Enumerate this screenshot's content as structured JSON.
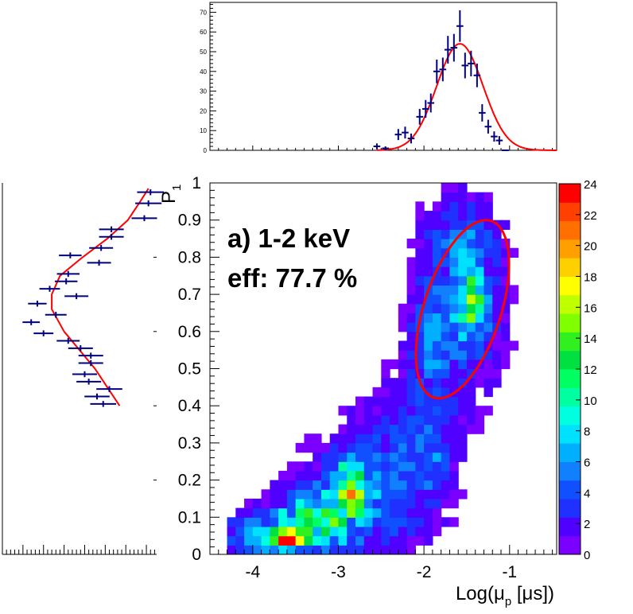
{
  "chart_data": [
    {
      "id": "main",
      "type": "heatmap",
      "title": "",
      "annotation_lines": [
        "a) 1-2 keV",
        "eff: 77.7 %"
      ],
      "xlabel": "Log(μ",
      "xlabel_sub": "p",
      "xlabel_unit": " [μs])",
      "ylabel": "P",
      "ylabel_sub": "1",
      "xlim": [
        -4.5,
        -0.45
      ],
      "ylim": [
        0,
        1
      ],
      "x_ticks": [
        -4,
        -3,
        -2,
        -1
      ],
      "x_tick_labels": [
        "-4",
        "-3",
        "-2",
        "-1"
      ],
      "y_ticks": [
        0,
        0.1,
        0.2,
        0.3,
        0.4,
        0.5,
        0.6,
        0.7,
        0.8,
        0.9,
        1
      ],
      "y_tick_labels": [
        "0",
        "0.1",
        "0.2",
        "0.3",
        "0.4",
        "0.5",
        "0.6",
        "0.7",
        "0.8",
        "0.9",
        "1"
      ],
      "ellipse": {
        "center": [
          -1.55,
          0.66
        ],
        "semi_x": 0.45,
        "semi_y": 0.25,
        "rotation_deg": 18,
        "color": "#ff0000"
      },
      "blobs": [
        {
          "x": -3.6,
          "y": 0.04,
          "sx": 0.1,
          "sy": 0.015,
          "a": 17
        },
        {
          "x": -3.3,
          "y": 0.09,
          "sx": 0.3,
          "sy": 0.05,
          "a": 9
        },
        {
          "x": -3.9,
          "y": 0.05,
          "sx": 0.35,
          "sy": 0.04,
          "a": 6
        },
        {
          "x": -2.85,
          "y": 0.18,
          "sx": 0.12,
          "sy": 0.05,
          "a": 10
        },
        {
          "x": -2.8,
          "y": 0.15,
          "sx": 0.45,
          "sy": 0.11,
          "a": 4
        },
        {
          "x": -2.2,
          "y": 0.27,
          "sx": 0.4,
          "sy": 0.14,
          "a": 2.8
        },
        {
          "x": -1.9,
          "y": 0.28,
          "sx": 0.15,
          "sy": 0.08,
          "a": 2
        },
        {
          "x": -1.6,
          "y": 0.68,
          "sx": 0.35,
          "sy": 0.17,
          "a": 4.5
        },
        {
          "x": -1.45,
          "y": 0.68,
          "sx": 0.12,
          "sy": 0.06,
          "a": 9
        },
        {
          "x": -1.95,
          "y": 0.55,
          "sx": 0.12,
          "sy": 0.08,
          "a": 3
        },
        {
          "x": -1.5,
          "y": 0.86,
          "sx": 0.25,
          "sy": 0.05,
          "a": 2.5
        }
      ],
      "colorbar": {
        "min": 0,
        "max": 24,
        "levels": 20,
        "tick_values": [
          0,
          2,
          4,
          6,
          8,
          10,
          12,
          14,
          16,
          18,
          20,
          22,
          24
        ],
        "tick_labels": [
          "0",
          "2",
          "4",
          "6",
          "8",
          "10",
          "12",
          "14",
          "16",
          "18",
          "20",
          "22",
          "24"
        ],
        "colors": [
          "#7c00ff",
          "#5000ff",
          "#2030ff",
          "#1050ff",
          "#1080ff",
          "#00b0ff",
          "#00e0ff",
          "#00ffe0",
          "#00ffa0",
          "#00ff60",
          "#00e040",
          "#30f020",
          "#80ff00",
          "#c0ff00",
          "#ffff00",
          "#ffd000",
          "#ffa000",
          "#ff7000",
          "#ff4000",
          "#ff0000"
        ]
      }
    },
    {
      "id": "top-projection",
      "type": "scatter",
      "title": "",
      "xlabel": "",
      "ylabel": "",
      "xlim": [
        -4.5,
        -0.45
      ],
      "ylim": [
        0,
        75
      ],
      "y_ticks": [
        0,
        10,
        20,
        30,
        40,
        50,
        60,
        70
      ],
      "y_tick_labels": [
        "0",
        "10",
        "20",
        "30",
        "40",
        "50",
        "60",
        "70"
      ],
      "x_major_ticks": [
        -4,
        -3,
        -2,
        -1
      ],
      "points_x": [
        -2.55,
        -2.45,
        -2.3,
        -2.22,
        -2.15,
        -2.05,
        -1.98,
        -1.92,
        -1.85,
        -1.78,
        -1.72,
        -1.65,
        -1.58,
        -1.52,
        -1.45,
        -1.38,
        -1.32,
        -1.25,
        -1.18,
        -1.12,
        -1.05
      ],
      "points_y": [
        2,
        1,
        8,
        9,
        6,
        17,
        21,
        24,
        40,
        41,
        51,
        52,
        63,
        43,
        44,
        38,
        19,
        12,
        7,
        5,
        0
      ],
      "errors_y": [
        1.5,
        1,
        2.8,
        3,
        2.5,
        4,
        4.5,
        4.8,
        6,
        6,
        7,
        7,
        8,
        6.5,
        6.5,
        6,
        4.4,
        3.5,
        2.6,
        2.2,
        0
      ],
      "bin_half_width": 0.04,
      "fit": {
        "type": "gaussian",
        "amplitude": 54,
        "mean": -1.58,
        "sigma": 0.27,
        "color": "#ff0000"
      }
    },
    {
      "id": "left-projection",
      "type": "scatter",
      "orientation": "horizontal",
      "xlabel": "",
      "ylabel": "",
      "xlim": [
        0,
        75
      ],
      "ylim": [
        0,
        1
      ],
      "y_major_ticks": [
        0.2,
        0.4,
        0.6,
        0.8
      ],
      "points_p": [
        0.975,
        0.945,
        0.905,
        0.875,
        0.855,
        0.825,
        0.805,
        0.785,
        0.755,
        0.735,
        0.715,
        0.695,
        0.675,
        0.645,
        0.625,
        0.595,
        0.575,
        0.555,
        0.535,
        0.515,
        0.485,
        0.465,
        0.445,
        0.425,
        0.405
      ],
      "points_count": [
        72,
        71,
        69,
        53,
        53,
        48,
        33,
        47,
        32,
        31,
        23,
        36,
        17,
        26,
        14,
        20,
        32,
        38,
        43,
        43,
        40,
        42,
        52,
        46,
        49
      ],
      "errors_count": [
        6.5,
        6.4,
        6.2,
        6,
        6,
        5.8,
        5.5,
        5.8,
        5.5,
        5.5,
        5,
        5.8,
        4.5,
        5.2,
        4.2,
        4.8,
        5.6,
        6,
        6,
        6,
        6,
        6,
        6.3,
        6.1,
        6.3
      ],
      "bin_half_width": 0.008,
      "fit": {
        "type": "polynomial",
        "color": "#ff0000",
        "p": [
          0.4,
          0.5,
          0.6,
          0.66,
          0.7,
          0.75,
          0.8,
          0.85,
          0.9,
          0.95,
          0.985
        ],
        "count": [
          57,
          45,
          30,
          24,
          24,
          28,
          39,
          51,
          61,
          67,
          71
        ]
      }
    }
  ]
}
